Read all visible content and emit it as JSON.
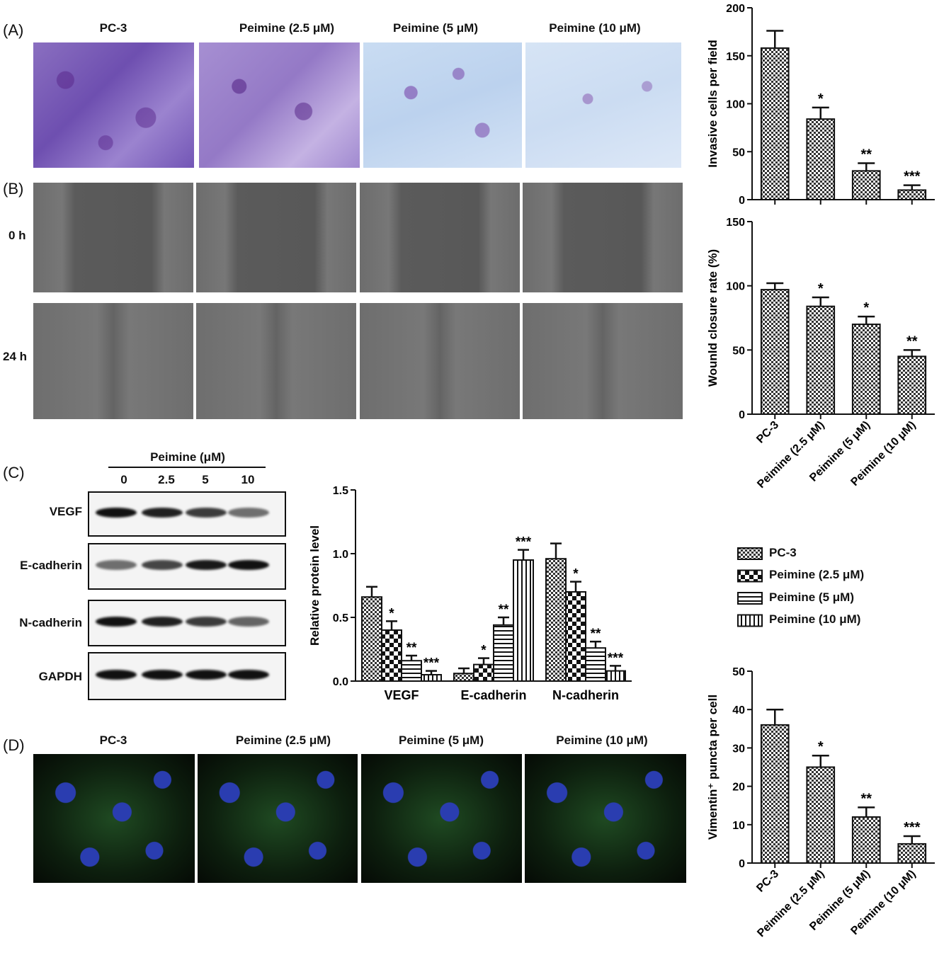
{
  "panels": {
    "a": "(A)",
    "b": "(B)",
    "c": "(C)",
    "d": "(D)"
  },
  "groups": [
    "PC-3",
    "Peimine (2.5 μM)",
    "Peimine (5 μM)",
    "Peimine (10 μM)"
  ],
  "wound_rows": [
    "0 h",
    "24 h"
  ],
  "western": {
    "header": "Peimine (μM)",
    "lanes": [
      "0",
      "2.5",
      "5",
      "10"
    ],
    "blots": [
      {
        "name": "VEGF",
        "intensity": [
          1.0,
          0.9,
          0.75,
          0.45
        ]
      },
      {
        "name": "E-cadherin",
        "intensity": [
          0.45,
          0.7,
          0.95,
          1.0
        ]
      },
      {
        "name": "N-cadherin",
        "intensity": [
          1.0,
          0.9,
          0.75,
          0.5
        ]
      },
      {
        "name": "GAPDH",
        "intensity": [
          1.0,
          1.0,
          1.0,
          1.0
        ]
      }
    ]
  },
  "legend": [
    "PC-3",
    "Peimine (2.5 μM)",
    "Peimine (5 μM)",
    "Peimine (10 μM)"
  ],
  "chart_data": [
    {
      "type": "bar",
      "ylabel": "Invasive cells per field",
      "categories": [
        "PC-3",
        "Peimine (2.5 μM)",
        "Peimine (5 μM)",
        "Peimine (10 μM)"
      ],
      "values": [
        158,
        84,
        30,
        10
      ],
      "errors": [
        18,
        12,
        8,
        5
      ],
      "significance": [
        "",
        "*",
        "**",
        "***"
      ],
      "ylim": [
        0,
        200
      ],
      "yticks": [
        0,
        50,
        100,
        150,
        200
      ]
    },
    {
      "type": "bar",
      "ylabel": "Wounld closure rate (%)",
      "categories": [
        "PC-3",
        "Peimine (2.5 μM)",
        "Peimine (5 μM)",
        "Peimine (10 μM)"
      ],
      "values": [
        97,
        84,
        70,
        45
      ],
      "errors": [
        5,
        7,
        6,
        5
      ],
      "significance": [
        "",
        "*",
        "*",
        "**"
      ],
      "ylim": [
        0,
        150
      ],
      "yticks": [
        0,
        50,
        100,
        150
      ]
    },
    {
      "type": "bar",
      "ylabel": "Relative protein level",
      "categories": [
        "VEGF",
        "E-cadherin",
        "N-cadherin"
      ],
      "series": [
        {
          "name": "PC-3",
          "values": [
            0.66,
            0.06,
            0.96
          ],
          "errors": [
            0.08,
            0.04,
            0.12
          ],
          "significance": [
            "",
            "",
            ""
          ]
        },
        {
          "name": "Peimine (2.5 μM)",
          "values": [
            0.4,
            0.13,
            0.7
          ],
          "errors": [
            0.07,
            0.05,
            0.08
          ],
          "significance": [
            "*",
            "*",
            "*"
          ]
        },
        {
          "name": "Peimine (5 μM)",
          "values": [
            0.16,
            0.44,
            0.26
          ],
          "errors": [
            0.04,
            0.06,
            0.05
          ],
          "significance": [
            "**",
            "**",
            "**"
          ]
        },
        {
          "name": "Peimine (10 μM)",
          "values": [
            0.05,
            0.95,
            0.08
          ],
          "errors": [
            0.03,
            0.08,
            0.04
          ],
          "significance": [
            "***",
            "***",
            "***"
          ]
        }
      ],
      "ylim": [
        0,
        1.5
      ],
      "yticks": [
        "0.0",
        "0.5",
        "1.0",
        "1.5"
      ]
    },
    {
      "type": "bar",
      "ylabel": "Vimentin⁺ puncta per cell",
      "categories": [
        "PC-3",
        "Peimine (2.5 μM)",
        "Peimine (5 μM)",
        "Peimine (10 μM)"
      ],
      "values": [
        36,
        25,
        12,
        5
      ],
      "errors": [
        4,
        3,
        2.5,
        2
      ],
      "significance": [
        "",
        "*",
        "**",
        "***"
      ],
      "ylim": [
        0,
        50
      ],
      "yticks": [
        0,
        10,
        20,
        30,
        40,
        50
      ]
    }
  ]
}
